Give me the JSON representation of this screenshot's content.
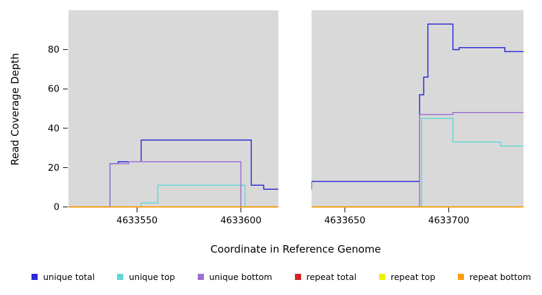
{
  "chart_data": {
    "type": "line",
    "title": "",
    "xlabel": "Coordinate in Reference Genome",
    "ylabel": "Read Coverage Depth",
    "xlim": [
      4633517,
      4633736
    ],
    "ylim": [
      0,
      100
    ],
    "x_ticks": [
      4633550,
      4633600,
      4633650,
      4633700
    ],
    "y_ticks": [
      0,
      20,
      40,
      60,
      80
    ],
    "plot_bg": "#d9d9d9",
    "gap_region": [
      4633618,
      4633634
    ],
    "grid": false,
    "legend_position": "bottom",
    "line_style": "step-after",
    "series": [
      {
        "name": "unique total",
        "color": "#2b2bd6",
        "points": [
          [
            4633517,
            0
          ],
          [
            4633537,
            22
          ],
          [
            4633541,
            23
          ],
          [
            4633552,
            34
          ],
          [
            4633605,
            11
          ],
          [
            4633611,
            9
          ],
          [
            4633634,
            13
          ],
          [
            4633686,
            57
          ],
          [
            4633688,
            66
          ],
          [
            4633690,
            93
          ],
          [
            4633702,
            80
          ],
          [
            4633705,
            81
          ],
          [
            4633727,
            79
          ]
        ]
      },
      {
        "name": "unique top",
        "color": "#62d7d7",
        "points": [
          [
            4633517,
            0
          ],
          [
            4633552,
            2
          ],
          [
            4633560,
            11
          ],
          [
            4633602,
            0
          ],
          [
            4633687,
            45
          ],
          [
            4633702,
            33
          ],
          [
            4633725,
            31
          ]
        ]
      },
      {
        "name": "unique bottom",
        "color": "#9a6fd0",
        "points": [
          [
            4633517,
            0
          ],
          [
            4633537,
            22
          ],
          [
            4633546,
            23
          ],
          [
            4633600,
            0
          ],
          [
            4633686,
            47
          ],
          [
            4633702,
            48
          ]
        ]
      },
      {
        "name": "repeat total",
        "color": "#d02424",
        "points": [
          [
            4633517,
            0
          ]
        ]
      },
      {
        "name": "repeat top",
        "color": "#f0f000",
        "points": [
          [
            4633517,
            0
          ]
        ]
      },
      {
        "name": "repeat bottom",
        "color": "#ff9d0f",
        "points": [
          [
            4633517,
            0
          ]
        ]
      }
    ]
  }
}
